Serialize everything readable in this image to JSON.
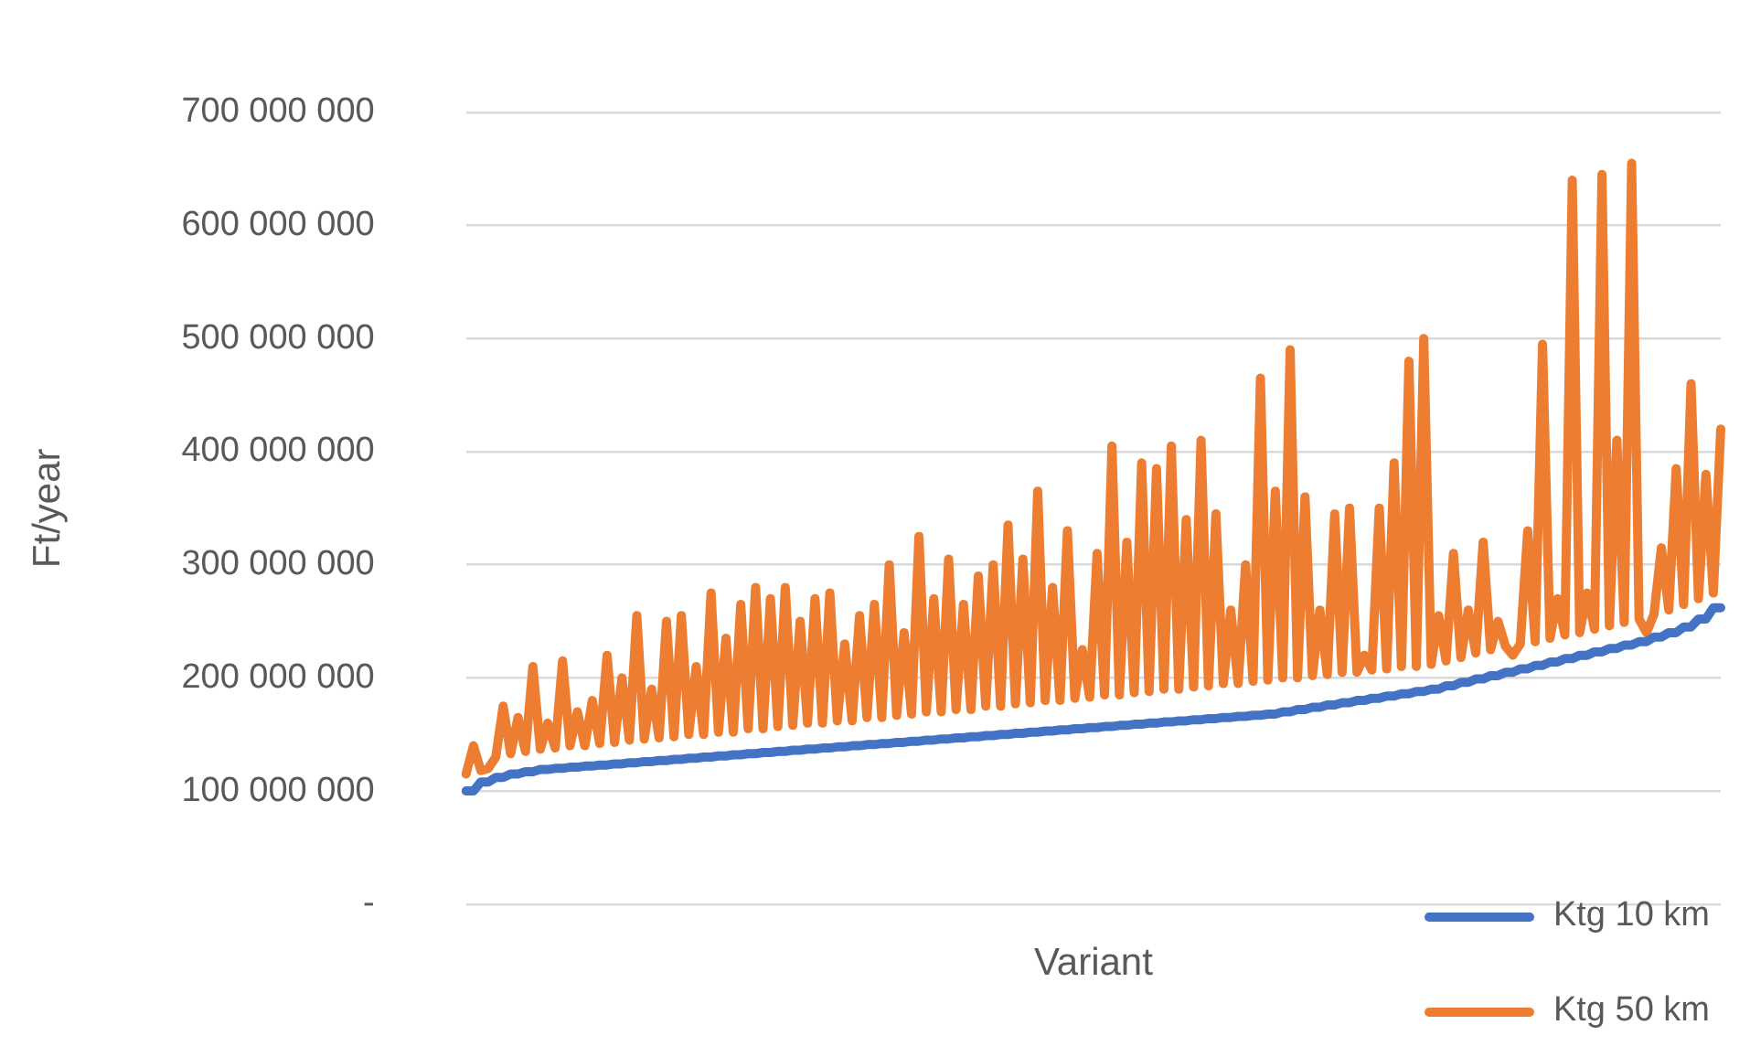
{
  "chart_data": {
    "type": "line",
    "xlabel": "Variant",
    "ylabel": "Ft/year",
    "categories": [
      null,
      null,
      null,
      null,
      null,
      null,
      null,
      null,
      null,
      null,
      null,
      null,
      null,
      null,
      null,
      null,
      null,
      null,
      null,
      null,
      null,
      null,
      null,
      null,
      null,
      null,
      null,
      null,
      null,
      null,
      null,
      null,
      null,
      null,
      null,
      null,
      null,
      null,
      null,
      null,
      null,
      null,
      null,
      null,
      null,
      null,
      null,
      null,
      null,
      null,
      null,
      null,
      null,
      null,
      null,
      null,
      null,
      null,
      null,
      null,
      null,
      null,
      null,
      null,
      null,
      null,
      null,
      null,
      null,
      null,
      null,
      null,
      null,
      null,
      null,
      null,
      null,
      null,
      null,
      null,
      null,
      null,
      null,
      null,
      null,
      null,
      null,
      null,
      null,
      null,
      null,
      null,
      null,
      null,
      null,
      null,
      null,
      null,
      null,
      null,
      null,
      null,
      null,
      null,
      null,
      null,
      null,
      null,
      null,
      null,
      null,
      null,
      null,
      null,
      null,
      null,
      null,
      null,
      null,
      null,
      null,
      null,
      null,
      null,
      null,
      null,
      null,
      null,
      null,
      null,
      null,
      null,
      null,
      null,
      null,
      null,
      null,
      null,
      null,
      null,
      null,
      null,
      null,
      null,
      null,
      null,
      null,
      null,
      null,
      null,
      null,
      null,
      null,
      null,
      null,
      null,
      null,
      null,
      null,
      null,
      null,
      null,
      null,
      null,
      null,
      null,
      null,
      null,
      null,
      null
    ],
    "series": [
      {
        "name": "Ktg 10 km",
        "color": "#4472c4",
        "values": [
          100000000,
          100000000,
          108000000,
          108000000,
          112000000,
          112000000,
          115000000,
          115000000,
          117000000,
          117000000,
          119000000,
          119000000,
          120000000,
          120000000,
          121000000,
          121000000,
          122000000,
          122000000,
          123000000,
          123000000,
          124000000,
          124000000,
          125000000,
          125000000,
          126000000,
          126000000,
          127000000,
          127000000,
          128000000,
          128000000,
          129000000,
          129000000,
          130000000,
          130000000,
          131000000,
          131000000,
          132000000,
          132000000,
          133000000,
          133000000,
          134000000,
          134000000,
          135000000,
          135000000,
          136000000,
          136000000,
          137000000,
          137000000,
          138000000,
          138000000,
          139000000,
          139000000,
          140000000,
          140000000,
          141000000,
          141000000,
          142000000,
          142000000,
          143000000,
          143000000,
          144000000,
          144000000,
          145000000,
          145000000,
          146000000,
          146000000,
          147000000,
          147000000,
          148000000,
          148000000,
          149000000,
          149000000,
          150000000,
          150000000,
          151000000,
          151000000,
          152000000,
          152000000,
          153000000,
          153000000,
          154000000,
          154000000,
          155000000,
          155000000,
          156000000,
          156000000,
          157000000,
          157000000,
          158000000,
          158000000,
          159000000,
          159000000,
          160000000,
          160000000,
          161000000,
          161000000,
          162000000,
          162000000,
          163000000,
          163000000,
          164000000,
          164000000,
          165000000,
          165000000,
          166000000,
          166000000,
          167000000,
          167000000,
          168000000,
          168000000,
          170000000,
          170000000,
          172000000,
          172000000,
          174000000,
          174000000,
          176000000,
          176000000,
          178000000,
          178000000,
          180000000,
          180000000,
          182000000,
          182000000,
          184000000,
          184000000,
          186000000,
          186000000,
          188000000,
          188000000,
          190000000,
          190000000,
          193000000,
          193000000,
          196000000,
          196000000,
          199000000,
          199000000,
          202000000,
          202000000,
          205000000,
          205000000,
          208000000,
          208000000,
          211000000,
          211000000,
          214000000,
          214000000,
          217000000,
          217000000,
          220000000,
          220000000,
          223000000,
          223000000,
          226000000,
          226000000,
          229000000,
          229000000,
          232000000,
          232000000,
          236000000,
          236000000,
          240000000,
          240000000,
          245000000,
          245000000,
          252000000,
          252000000,
          262000000,
          262000000
        ]
      },
      {
        "name": "Ktg 50 km",
        "color": "#ed7d31",
        "values": [
          115000000,
          140000000,
          118000000,
          120000000,
          130000000,
          175000000,
          133000000,
          165000000,
          135000000,
          210000000,
          137000000,
          160000000,
          138000000,
          215000000,
          140000000,
          170000000,
          140000000,
          180000000,
          142000000,
          220000000,
          143000000,
          200000000,
          145000000,
          255000000,
          146000000,
          190000000,
          147000000,
          250000000,
          148000000,
          255000000,
          150000000,
          210000000,
          150000000,
          275000000,
          152000000,
          235000000,
          152000000,
          265000000,
          155000000,
          280000000,
          155000000,
          270000000,
          157000000,
          280000000,
          158000000,
          250000000,
          160000000,
          270000000,
          160000000,
          275000000,
          162000000,
          230000000,
          162000000,
          255000000,
          165000000,
          265000000,
          165000000,
          300000000,
          167000000,
          240000000,
          168000000,
          325000000,
          170000000,
          270000000,
          170000000,
          305000000,
          172000000,
          265000000,
          172000000,
          290000000,
          175000000,
          300000000,
          175000000,
          335000000,
          177000000,
          305000000,
          178000000,
          365000000,
          180000000,
          280000000,
          180000000,
          330000000,
          182000000,
          225000000,
          183000000,
          310000000,
          185000000,
          405000000,
          185000000,
          320000000,
          187000000,
          390000000,
          188000000,
          385000000,
          190000000,
          405000000,
          190000000,
          340000000,
          192000000,
          410000000,
          193000000,
          345000000,
          195000000,
          260000000,
          195000000,
          300000000,
          197000000,
          465000000,
          198000000,
          365000000,
          200000000,
          490000000,
          200000000,
          360000000,
          202000000,
          260000000,
          203000000,
          345000000,
          205000000,
          350000000,
          205000000,
          220000000,
          207000000,
          350000000,
          208000000,
          390000000,
          210000000,
          480000000,
          210000000,
          500000000,
          212000000,
          255000000,
          215000000,
          310000000,
          218000000,
          260000000,
          222000000,
          320000000,
          225000000,
          250000000,
          228000000,
          220000000,
          230000000,
          330000000,
          232000000,
          495000000,
          235000000,
          270000000,
          238000000,
          640000000,
          240000000,
          275000000,
          243000000,
          645000000,
          246000000,
          410000000,
          249000000,
          655000000,
          252000000,
          240000000,
          256000000,
          315000000,
          260000000,
          385000000,
          265000000,
          460000000,
          270000000,
          380000000,
          275000000,
          420000000
        ]
      }
    ],
    "ylim": [
      0,
      700000000
    ],
    "yticks": [
      {
        "value": 0,
        "label": "-"
      },
      {
        "value": 100000000,
        "label": "100 000 000"
      },
      {
        "value": 200000000,
        "label": "200 000 000"
      },
      {
        "value": 300000000,
        "label": "300 000 000"
      },
      {
        "value": 400000000,
        "label": "400 000 000"
      },
      {
        "value": 500000000,
        "label": "500 000 000"
      },
      {
        "value": 600000000,
        "label": "600 000 000"
      },
      {
        "value": 700000000,
        "label": "700 000 000"
      }
    ],
    "grid": "y",
    "legend": "bottom right",
    "marker": "none",
    "line_style": "solid"
  }
}
